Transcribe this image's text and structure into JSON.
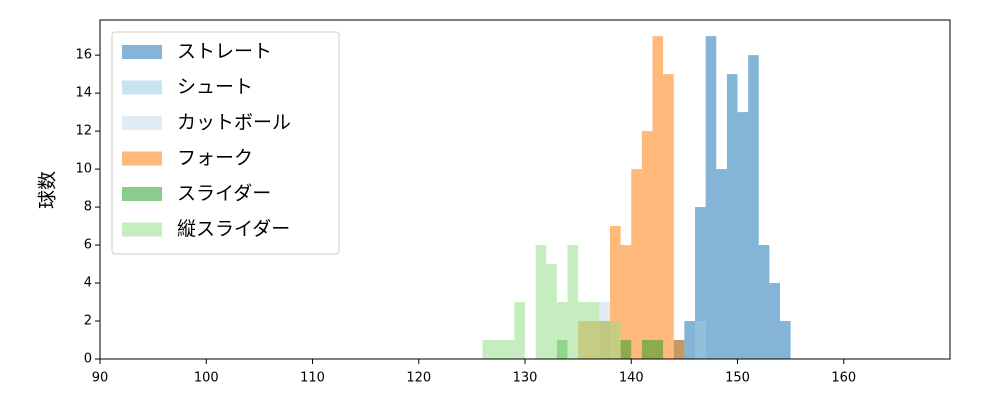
{
  "chart_data": {
    "type": "histogram",
    "y_label": "球数",
    "bins": [
      126,
      127,
      128,
      129,
      130,
      131,
      132,
      133,
      134,
      135,
      136,
      137,
      138,
      139,
      140,
      141,
      142,
      143,
      144,
      145,
      146,
      147,
      148,
      149,
      150,
      151,
      152,
      153,
      154,
      155
    ],
    "series": [
      {
        "name": "ストレート",
        "color": "#1f77b4",
        "values": [
          0,
          0,
          0,
          0,
          0,
          0,
          0,
          0,
          0,
          0,
          0,
          0,
          0,
          0,
          0,
          0,
          0,
          0,
          1,
          2,
          8,
          17,
          10,
          15,
          13,
          16,
          6,
          4,
          2
        ]
      },
      {
        "name": "シュート",
        "color": "#9ecae1",
        "values": [
          0,
          0,
          0,
          0,
          0,
          0,
          0,
          0,
          0,
          0,
          0,
          0,
          0,
          0,
          0,
          0,
          0,
          0,
          0,
          0,
          2,
          0,
          0,
          0,
          0,
          0,
          0,
          0,
          0
        ]
      },
      {
        "name": "カットボール",
        "color": "#c6dbef",
        "values": [
          0,
          0,
          0,
          0,
          0,
          0,
          0,
          0,
          0,
          0,
          0,
          3,
          0,
          0,
          0,
          0,
          0,
          0,
          0,
          0,
          0,
          0,
          0,
          0,
          0,
          0,
          0,
          0,
          0
        ]
      },
      {
        "name": "フォーク",
        "color": "#ff7f0e",
        "values": [
          0,
          0,
          0,
          0,
          0,
          0,
          0,
          0,
          0,
          2,
          2,
          2,
          7,
          6,
          10,
          12,
          17,
          15,
          1,
          0,
          0,
          0,
          0,
          0,
          0,
          0,
          0,
          0,
          0
        ]
      },
      {
        "name": "スライダー",
        "color": "#2ca02c",
        "values": [
          0,
          0,
          0,
          0,
          0,
          0,
          0,
          1,
          0,
          0,
          0,
          0,
          0,
          1,
          0,
          1,
          1,
          0,
          0,
          0,
          0,
          0,
          0,
          0,
          0,
          0,
          0,
          0,
          0
        ]
      },
      {
        "name": "縦スライダー",
        "color": "#98df8a",
        "values": [
          1,
          1,
          1,
          3,
          0,
          6,
          5,
          3,
          6,
          3,
          3,
          2,
          2,
          0,
          0,
          0,
          0,
          0,
          0,
          0,
          0,
          0,
          0,
          0,
          0,
          0,
          0,
          0,
          0
        ]
      }
    ],
    "xlim": [
      90,
      170
    ],
    "xticks": [
      90,
      100,
      110,
      120,
      130,
      140,
      150,
      160
    ],
    "ylim": [
      0,
      17.85
    ],
    "yticks": [
      0,
      2,
      4,
      6,
      8,
      10,
      12,
      14,
      16
    ],
    "legend": "upper left"
  }
}
